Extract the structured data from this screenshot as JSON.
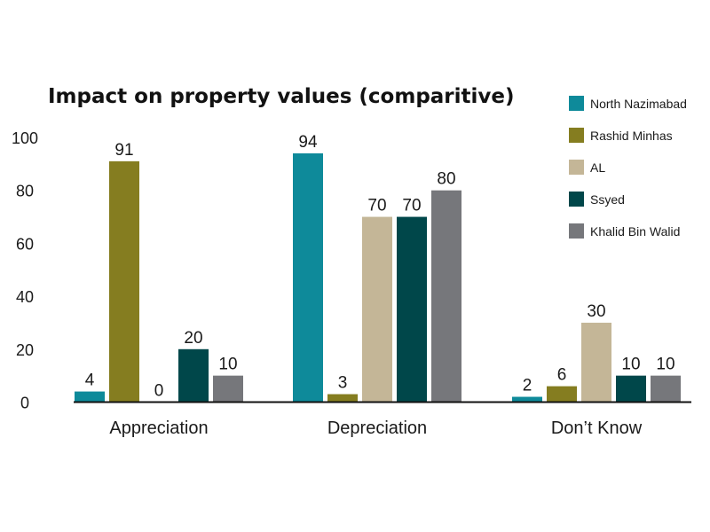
{
  "chart_data": {
    "type": "bar",
    "title": "Impact on property values (comparitive)",
    "xlabel": "",
    "ylabel": "",
    "ylim": [
      0,
      100
    ],
    "yticks": [
      0,
      20,
      40,
      60,
      80,
      100
    ],
    "grid": false,
    "legend_position": "right",
    "categories": [
      "Appreciation",
      "Depreciation",
      "Don’t Know"
    ],
    "series": [
      {
        "name": "North Nazimabad",
        "color": "#0e8a9a",
        "values": [
          4,
          94,
          2
        ]
      },
      {
        "name": "Rashid Minhas",
        "color": "#857d20",
        "values": [
          91,
          3,
          6
        ]
      },
      {
        "name": "AL",
        "color": "#c4b697",
        "values": [
          0,
          70,
          30
        ]
      },
      {
        "name": "Ssyed",
        "color": "#00474a",
        "values": [
          20,
          70,
          10
        ]
      },
      {
        "name": "Khalid Bin Walid",
        "color": "#76777b",
        "values": [
          10,
          80,
          10
        ]
      }
    ]
  }
}
